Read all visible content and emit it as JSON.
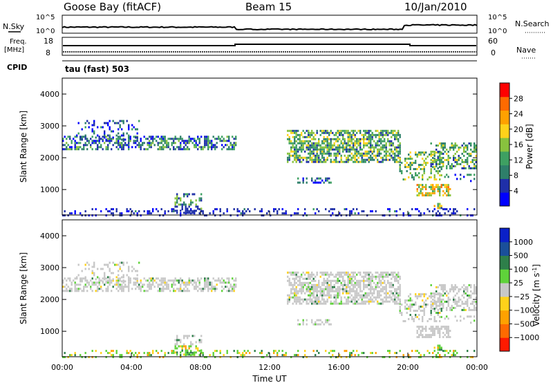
{
  "header": {
    "station": "Goose Bay (fitACF)",
    "beam": "Beam 15",
    "date": "10/Jan/2010"
  },
  "top_panels": {
    "nsky_label": "N.Sky",
    "nsearch_label": "N.Search",
    "noise_ticks": [
      "10^5",
      "10^0"
    ],
    "freq_label_1": "Freq.",
    "freq_label_2": "[MHz]",
    "freq_ticks": [
      "18",
      "8"
    ],
    "nave_label": "Nave",
    "nave_ticks": [
      "60",
      "0"
    ],
    "cpid_label": "CPID",
    "cpid_value": "tau (fast) 503"
  },
  "chart_data": [
    {
      "type": "heatmap",
      "name": "power-panel",
      "ylabel": "Slant Range [km]",
      "yticks": [
        "4000",
        "3000",
        "2000",
        "1000"
      ],
      "ylim": [
        200,
        4500
      ],
      "xlim": [
        0,
        24
      ],
      "colorbar_label": "Power [dB]",
      "colorbar_ticks": [
        "28",
        "24",
        "20",
        "16",
        "12",
        "8",
        "4"
      ],
      "colors": [
        "#0000ff",
        "#1f2fa8",
        "#2e7f6a",
        "#3ea062",
        "#88c23e",
        "#ffd21a",
        "#ffa100",
        "#ff6a00",
        "#ff0000"
      ]
    },
    {
      "type": "heatmap",
      "name": "velocity-panel",
      "ylabel": "Slant Range [km]",
      "yticks": [
        "4000",
        "3000",
        "2000",
        "1000"
      ],
      "ylim": [
        200,
        4500
      ],
      "xlim": [
        0,
        24
      ],
      "xlabel": "Time UT",
      "xticks": [
        "00:00",
        "04:00",
        "08:00",
        "12:00",
        "16:00",
        "20:00",
        "00:00"
      ],
      "colorbar_label": "Velocity [m s",
      "colorbar_label_exp": "-1",
      "colorbar_label_end": "]",
      "colorbar_ticks": [
        "1000",
        "500",
        "100",
        "25",
        "−25",
        "−100",
        "−500",
        "−1000"
      ],
      "colors": [
        "#0a20c8",
        "#1a4f9a",
        "#2e7f4a",
        "#5fd23a",
        "#c8c8c8",
        "#ffd21a",
        "#ffa100",
        "#ff6a00",
        "#ff1a00"
      ]
    }
  ]
}
